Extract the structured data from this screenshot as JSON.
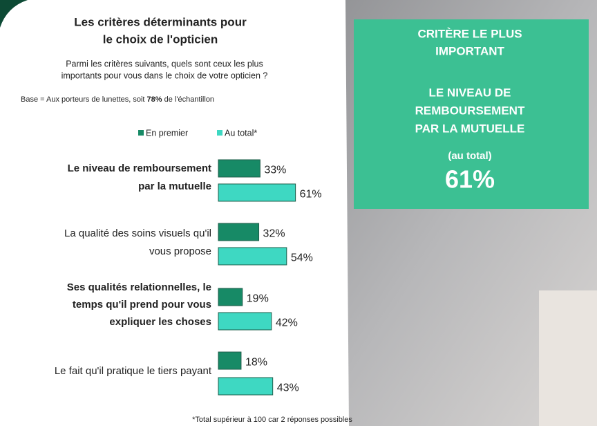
{
  "chart_data": {
    "type": "bar",
    "title": [
      "Les critères déterminants pour",
      "le choix de l'opticien"
    ],
    "subtitle": [
      "Parmi les critères suivants, quels sont ceux les plus",
      "importants pour vous dans le choix de votre opticien ?"
    ],
    "base_note": {
      "before": "Base = Aux porteurs de lunettes, soit ",
      "bold": "78%",
      "after": " de l'échantillon"
    },
    "categories": [
      [
        "Le niveau de remboursement",
        "par la mutuelle"
      ],
      [
        "La qualité des soins visuels qu'il",
        "vous propose"
      ],
      [
        "Ses qualités relationnelles, le",
        "temps qu'il prend pour vous",
        "expliquer les choses"
      ],
      [
        "Le fait qu'il pratique le tiers payant"
      ]
    ],
    "series": [
      {
        "name": "En premier",
        "color": "#178a66",
        "values": [
          33,
          32,
          19,
          18
        ],
        "value_labels": [
          "33%",
          "32%",
          "19%",
          "18%"
        ]
      },
      {
        "name": "Au total*",
        "color": "#3ed8c2",
        "values": [
          61,
          54,
          42,
          43
        ],
        "value_labels": [
          "61%",
          "54%",
          "42%",
          "43%"
        ]
      }
    ],
    "footnote": "*Total supérieur à 100 car 2 réponses possibles",
    "panel": {
      "heading": [
        "CRITÈRE LE PLUS",
        "IMPORTANT"
      ],
      "criterion": [
        "LE NIVEAU DE",
        "REMBOURSEMENT",
        "PAR LA MUTUELLE"
      ],
      "note": "(au total)",
      "value": "61%"
    }
  }
}
